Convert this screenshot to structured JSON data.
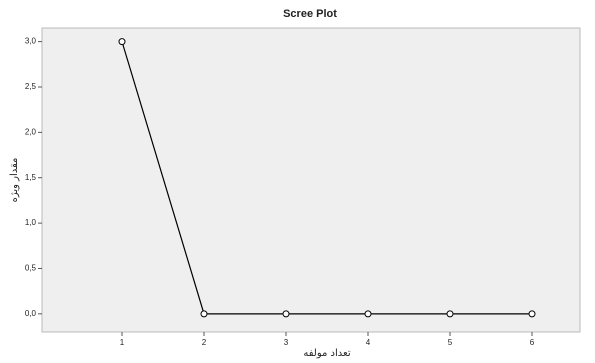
{
  "chart_data": {
    "type": "line",
    "title": "Scree Plot",
    "x_label": "تعداد مولفه",
    "y_label": "مقدار ویژه",
    "categories": [
      "1",
      "2",
      "3",
      "4",
      "5",
      "6"
    ],
    "values": [
      3.0,
      0.0,
      0.0,
      0.0,
      0.0,
      0.0
    ],
    "color": "#000000",
    "ylim": [
      -0.2,
      3.15
    ],
    "yticks": [
      {
        "value": 0,
        "label": "0,0"
      },
      {
        "value": 0.5,
        "label": "0,5"
      },
      {
        "value": 1,
        "label": "1,0"
      },
      {
        "value": 1.5,
        "label": "1,5"
      },
      {
        "value": 2,
        "label": "2,0"
      },
      {
        "value": 2.5,
        "label": "2,5"
      },
      {
        "value": 3,
        "label": "3,0"
      }
    ]
  }
}
